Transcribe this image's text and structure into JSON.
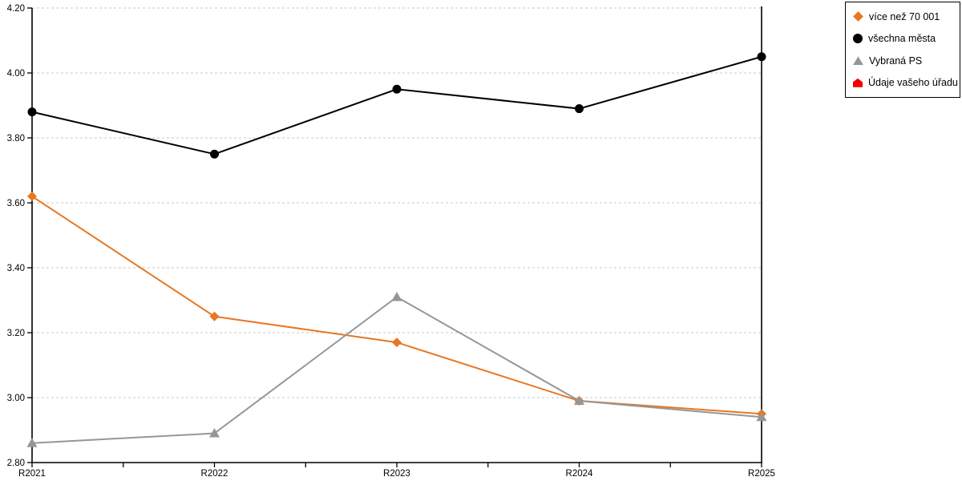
{
  "chart_data": {
    "type": "line",
    "title": "",
    "xlabel": "",
    "ylabel": "",
    "categories": [
      "R2021",
      "R2022",
      "R2023",
      "R2024",
      "R2025"
    ],
    "series": [
      {
        "name": "více než 70 001",
        "color": "#E87722",
        "marker": "diamond",
        "values": [
          3.62,
          3.25,
          3.17,
          2.99,
          2.95
        ]
      },
      {
        "name": "všechna města",
        "color": "#000000",
        "marker": "circle",
        "values": [
          3.88,
          3.75,
          3.95,
          3.89,
          4.05
        ]
      },
      {
        "name": "Vybraná PS",
        "color": "#969696",
        "marker": "triangle",
        "values": [
          2.86,
          2.89,
          3.31,
          2.99,
          2.94
        ]
      },
      {
        "name": "Údaje vašeho úřadu",
        "color": "#F40000",
        "marker": "house",
        "values": []
      }
    ],
    "ylim": [
      2.8,
      4.2
    ],
    "yticks": [
      "4.20",
      "4.00",
      "3.80",
      "3.60",
      "3.40",
      "3.20",
      "3.00",
      "2.80"
    ],
    "grid": "horizontal-dashed",
    "grid_color": "#C9C9C9",
    "axis_color": "#000000",
    "legend_position": "top-right"
  }
}
